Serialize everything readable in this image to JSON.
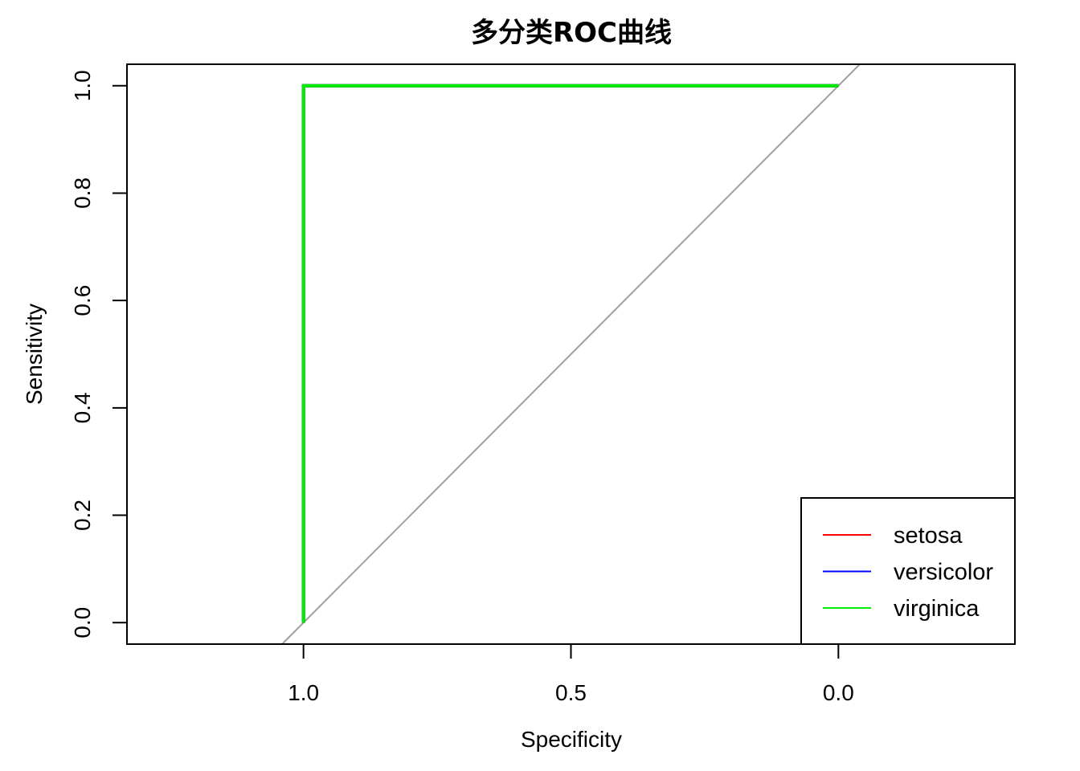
{
  "chart_data": {
    "type": "line",
    "title": "多分类ROC曲线",
    "xlabel": "Specificity",
    "ylabel": "Sensitivity",
    "x_reversed": true,
    "xlim": [
      1.33,
      -0.33
    ],
    "ylim": [
      -0.04,
      1.04
    ],
    "x_ticks": [
      {
        "value": 1.0,
        "label": "1.0"
      },
      {
        "value": 0.5,
        "label": "0.5"
      },
      {
        "value": 0.0,
        "label": "0.0"
      }
    ],
    "y_ticks": [
      {
        "value": 0.0,
        "label": "0.0"
      },
      {
        "value": 0.2,
        "label": "0.2"
      },
      {
        "value": 0.4,
        "label": "0.4"
      },
      {
        "value": 0.6,
        "label": "0.6"
      },
      {
        "value": 0.8,
        "label": "0.8"
      },
      {
        "value": 1.0,
        "label": "1.0"
      }
    ],
    "grid": false,
    "legend_position": "bottom-right",
    "reference_line": {
      "x": [
        1.04,
        -0.04
      ],
      "y": [
        -0.04,
        1.04
      ],
      "color": "#a0a0a0"
    },
    "series": [
      {
        "name": "setosa",
        "color": "#ff0000",
        "x": [
          1.0,
          1.0,
          0.0
        ],
        "y": [
          0.0,
          1.0,
          1.0
        ]
      },
      {
        "name": "versicolor",
        "color": "#0000ff",
        "x": [
          1.0,
          1.0,
          0.0
        ],
        "y": [
          0.0,
          1.0,
          1.0
        ]
      },
      {
        "name": "virginica",
        "color": "#00ee00",
        "x": [
          1.0,
          1.0,
          0.0
        ],
        "y": [
          0.0,
          1.0,
          1.0
        ]
      }
    ]
  }
}
